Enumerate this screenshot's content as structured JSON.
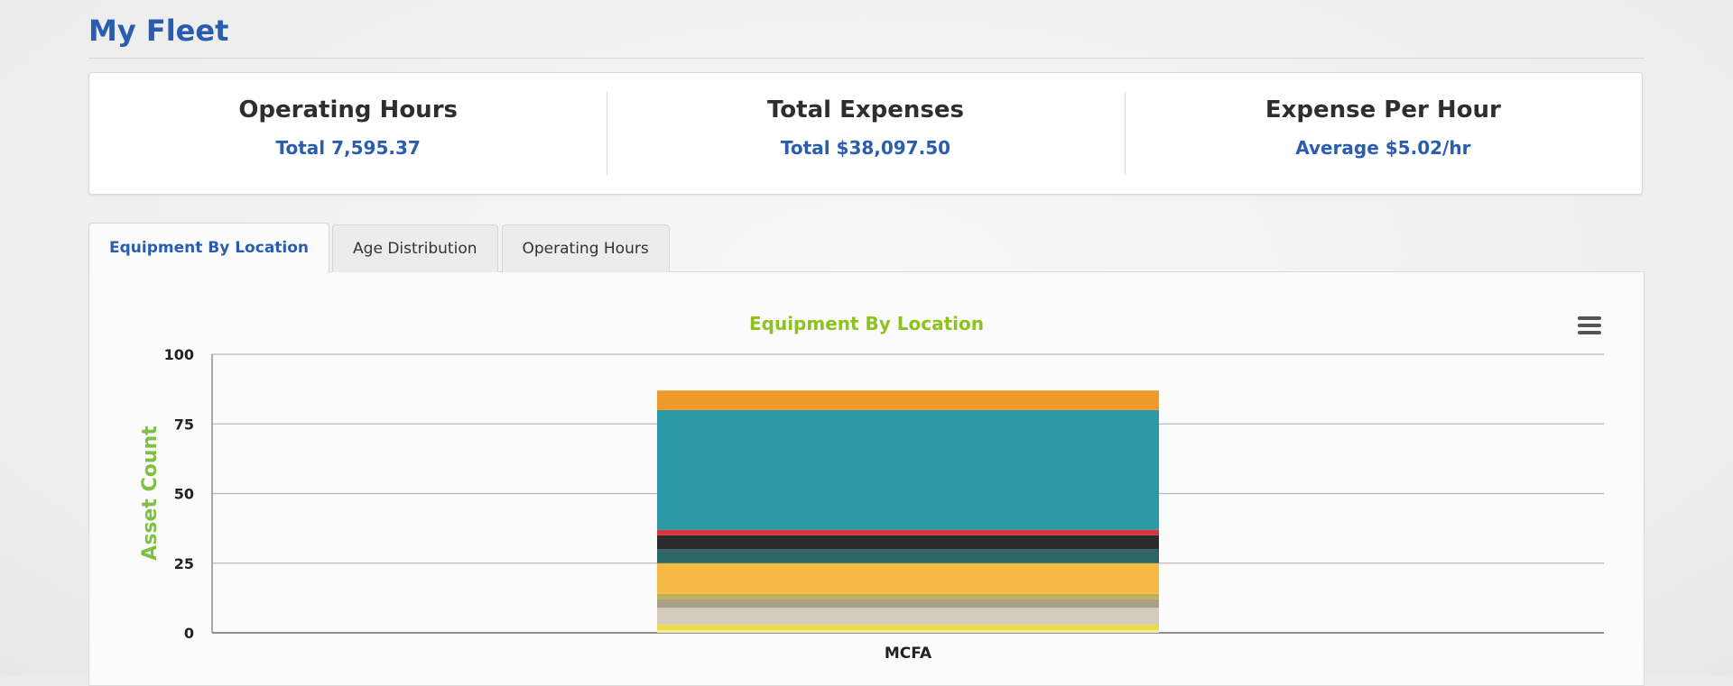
{
  "page": {
    "title": "My Fleet"
  },
  "stats": [
    {
      "label": "Operating Hours",
      "value": "Total 7,595.37"
    },
    {
      "label": "Total Expenses",
      "value": "Total $38,097.50"
    },
    {
      "label": "Expense Per Hour",
      "value": "Average $5.02/hr"
    }
  ],
  "tabs": [
    {
      "label": "Equipment By Location",
      "active": true
    },
    {
      "label": "Age Distribution",
      "active": false
    },
    {
      "label": "Operating Hours",
      "active": false
    }
  ],
  "chart_menu": {
    "icon": "hamburger-menu-icon"
  },
  "chart_data": {
    "type": "bar",
    "stacked": true,
    "title": "Equipment By Location",
    "xlabel": "",
    "ylabel": "Asset Count",
    "ylim": [
      0,
      100
    ],
    "yticks": [
      0,
      25,
      50,
      75,
      100
    ],
    "grid": true,
    "categories": [
      "MCFA"
    ],
    "colors": {
      "title": "#8dc21f",
      "ylabel": "#7cc242"
    },
    "segments": [
      {
        "value": 1,
        "color": "#f5e6a3"
      },
      {
        "value": 2,
        "color": "#ecd944"
      },
      {
        "value": 6,
        "color": "#d3cbbb"
      },
      {
        "value": 3,
        "color": "#a89e8a"
      },
      {
        "value": 2,
        "color": "#bfb15a"
      },
      {
        "value": 11,
        "color": "#f6b944"
      },
      {
        "value": 5,
        "color": "#2d6466"
      },
      {
        "value": 5,
        "color": "#2b2b2b"
      },
      {
        "value": 2,
        "color": "#d6373c"
      },
      {
        "value": 43,
        "color": "#2b9aa6"
      },
      {
        "value": 7,
        "color": "#f0992b"
      }
    ]
  }
}
